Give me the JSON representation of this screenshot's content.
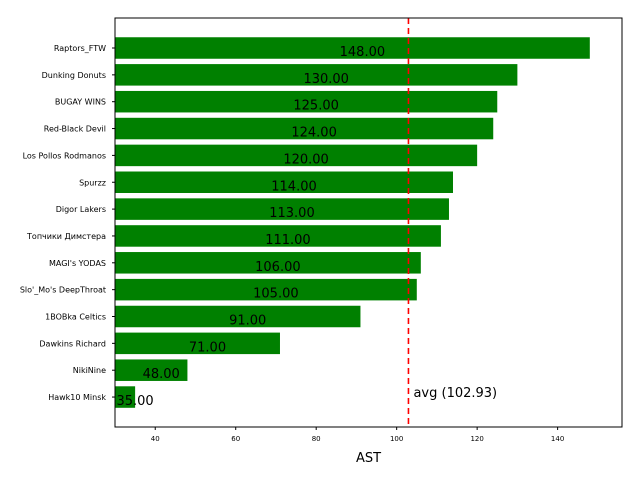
{
  "chart_data": {
    "type": "bar",
    "orientation": "horizontal",
    "categories": [
      "Raptors_FTW",
      "Dunking Donuts",
      "BUGAY WINS",
      "Red-Black Devil",
      "Los Pollos Rodmanos",
      "Spurzz",
      "Digor Lakers",
      "Топчики Димстера",
      "MAGI's YODAS",
      "Slo'_Mo's DeepThroat",
      "1BOBka Celtics",
      "Dawkins Richard",
      "NikiNine",
      "Hawk10 Minsk"
    ],
    "values": [
      148,
      130,
      125,
      124,
      120,
      114,
      113,
      111,
      106,
      105,
      91,
      71,
      48,
      35
    ],
    "value_labels": [
      "148.00",
      "130.00",
      "125.00",
      "124.00",
      "120.00",
      "114.00",
      "113.00",
      "111.00",
      "106.00",
      "105.00",
      "91.00",
      "71.00",
      "48.00",
      "35.00"
    ],
    "xlabel": "AST",
    "xlim": [
      30,
      156
    ],
    "xticks": [
      40,
      60,
      80,
      100,
      120,
      140
    ],
    "average": 102.93,
    "average_label": "avg (102.93)",
    "colors": {
      "bar": "#008000",
      "average_line": "#ff0000"
    },
    "grid": false
  }
}
